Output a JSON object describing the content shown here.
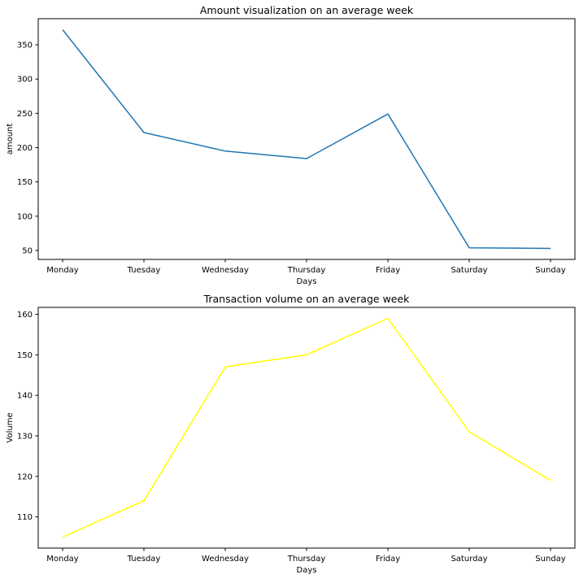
{
  "chart_data": [
    {
      "type": "line",
      "title": "Amount visualization on an average week",
      "xlabel": "Days",
      "ylabel": "amount",
      "categories": [
        "Monday",
        "Tuesday",
        "Wednesday",
        "Thursday",
        "Friday",
        "Saturday",
        "Sunday"
      ],
      "series": [
        {
          "values": [
            372,
            222,
            195,
            184,
            249,
            54,
            53
          ],
          "color": "#1f77b4"
        }
      ],
      "ylim": [
        37,
        388
      ],
      "yticks": [
        50,
        100,
        150,
        200,
        250,
        300,
        350
      ],
      "grid": false,
      "legend": "none"
    },
    {
      "type": "line",
      "title": "Transaction volume on an average week",
      "xlabel": "Days",
      "ylabel": "Volume",
      "categories": [
        "Monday",
        "Tuesday",
        "Wednesday",
        "Thursday",
        "Friday",
        "Saturday",
        "Sunday"
      ],
      "series": [
        {
          "values": [
            105,
            114,
            147,
            150,
            159,
            131,
            119
          ],
          "color": "#ffff00"
        }
      ],
      "ylim": [
        102.3,
        161.7
      ],
      "yticks": [
        110,
        120,
        130,
        140,
        150,
        160
      ],
      "grid": false,
      "legend": "none"
    }
  ]
}
